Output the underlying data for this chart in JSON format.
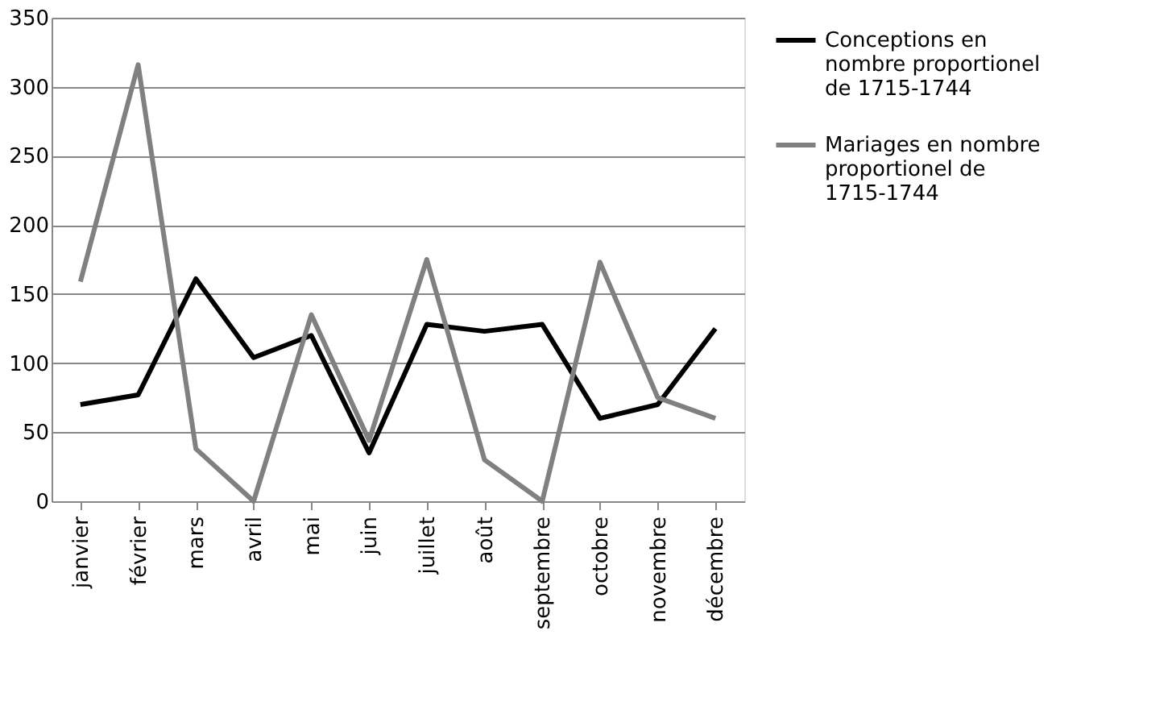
{
  "chart_data": {
    "type": "line",
    "categories": [
      "janvier",
      "février",
      "mars",
      "avril",
      "mai",
      "juin",
      "juillet",
      "août",
      "septembre",
      "octobre",
      "novembre",
      "décembre"
    ],
    "series": [
      {
        "name": "Conceptions en nombre proportionel de 1715-1744",
        "color": "#000000",
        "values": [
          70,
          77,
          161,
          104,
          120,
          35,
          128,
          123,
          128,
          60,
          70,
          125
        ]
      },
      {
        "name": "Mariages en nombre proportionel de 1715-1744",
        "color": "#808080",
        "values": [
          159,
          316,
          38,
          0,
          135,
          44,
          175,
          30,
          0,
          173,
          75,
          60
        ]
      }
    ],
    "ylim": [
      0,
      350
    ],
    "yticks": [
      0,
      50,
      100,
      150,
      200,
      250,
      300,
      350
    ],
    "grid": "y",
    "legend": "right",
    "marker": "none",
    "line_style": "solid"
  }
}
